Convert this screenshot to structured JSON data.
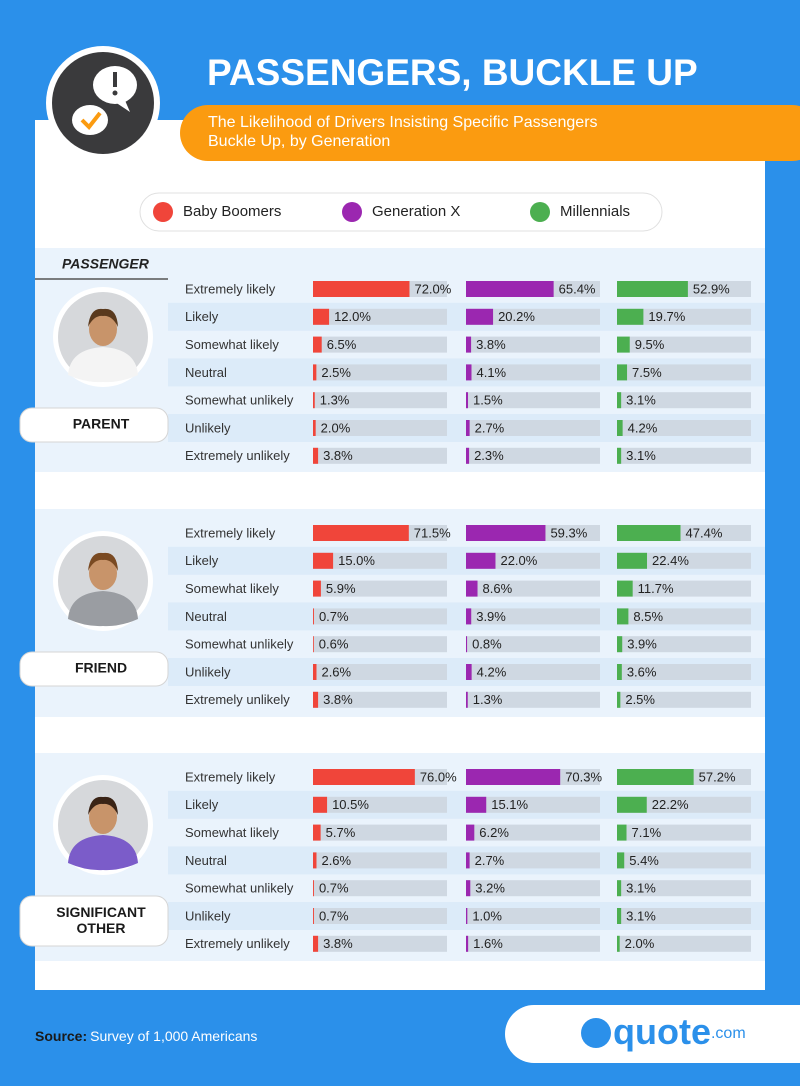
{
  "header": {
    "title": "PASSENGERS, BUCKLE UP",
    "subtitle": [
      "The Likelihood of Drivers Insisting Specific Passengers",
      "Buckle Up, by Generation"
    ]
  },
  "column_label": "PASSENGER",
  "source": {
    "label": "Source:",
    "text": "Survey of 1,000 Americans"
  },
  "logo": {
    "name": "quote",
    "suffix": ".com"
  },
  "chart_data": [
    {
      "type": "bar",
      "title": "PARENT",
      "xlim": [
        0,
        100
      ],
      "categories": [
        "Extremely likely",
        "Likely",
        "Somewhat likely",
        "Neutral",
        "Somewhat unlikely",
        "Unlikely",
        "Extremely unlikely"
      ],
      "series": [
        {
          "name": "Baby Boomers",
          "color": "#f0453a",
          "values": [
            72.0,
            12.0,
            6.5,
            2.5,
            1.3,
            2.0,
            3.8
          ],
          "value_labels": [
            "72.0%",
            "12.0%",
            "6.5%",
            "2.5%",
            "1.3%",
            "2.0%",
            "3.8%"
          ]
        },
        {
          "name": "Generation X",
          "color": "#9b27b0",
          "values": [
            65.4,
            20.2,
            3.8,
            4.1,
            1.5,
            2.7,
            2.3
          ],
          "value_labels": [
            "65.4%",
            "20.2%",
            "3.8%",
            "4.1%",
            "1.5%",
            "2.7%",
            "2.3%"
          ]
        },
        {
          "name": "Millennials",
          "color": "#4caf50",
          "values": [
            52.9,
            19.7,
            9.5,
            7.5,
            3.1,
            4.2,
            3.1
          ],
          "value_labels": [
            "52.9%",
            "19.7%",
            "9.5%",
            "7.5%",
            "3.1%",
            "4.2%",
            "3.1%"
          ]
        }
      ]
    },
    {
      "type": "bar",
      "title": "FRIEND",
      "xlim": [
        0,
        100
      ],
      "categories": [
        "Extremely likely",
        "Likely",
        "Somewhat likely",
        "Neutral",
        "Somewhat unlikely",
        "Unlikely",
        "Extremely unlikely"
      ],
      "series": [
        {
          "name": "Baby Boomers",
          "color": "#f0453a",
          "values": [
            71.5,
            15.0,
            5.9,
            0.7,
            0.6,
            2.6,
            3.8
          ],
          "value_labels": [
            "71.5%",
            "15.0%",
            "5.9%",
            "0.7%",
            "0.6%",
            "2.6%",
            "3.8%"
          ]
        },
        {
          "name": "Generation X",
          "color": "#9b27b0",
          "values": [
            59.3,
            22.0,
            8.6,
            3.9,
            0.8,
            4.2,
            1.3
          ],
          "value_labels": [
            "59.3%",
            "22.0%",
            "8.6%",
            "3.9%",
            "0.8%",
            "4.2%",
            "1.3%"
          ]
        },
        {
          "name": "Millennials",
          "color": "#4caf50",
          "values": [
            47.4,
            22.4,
            11.7,
            8.5,
            3.9,
            3.6,
            2.5
          ],
          "value_labels": [
            "47.4%",
            "22.4%",
            "11.7%",
            "8.5%",
            "3.9%",
            "3.6%",
            "2.5%"
          ]
        }
      ]
    },
    {
      "type": "bar",
      "title": "SIGNIFICANT OTHER",
      "xlim": [
        0,
        100
      ],
      "categories": [
        "Extremely likely",
        "Likely",
        "Somewhat likely",
        "Neutral",
        "Somewhat unlikely",
        "Unlikely",
        "Extremely unlikely"
      ],
      "series": [
        {
          "name": "Baby Boomers",
          "color": "#f0453a",
          "values": [
            76.0,
            10.5,
            5.7,
            2.6,
            0.7,
            0.7,
            3.8
          ],
          "value_labels": [
            "76.0%",
            "10.5%",
            "5.7%",
            "2.6%",
            "0.7%",
            "0.7%",
            "3.8%"
          ]
        },
        {
          "name": "Generation X",
          "color": "#9b27b0",
          "values": [
            70.3,
            15.1,
            6.2,
            2.7,
            3.2,
            1.0,
            1.6
          ],
          "value_labels": [
            "70.3%",
            "15.1%",
            "6.2%",
            "2.7%",
            "3.2%",
            "1.0%",
            "1.6%"
          ]
        },
        {
          "name": "Millennials",
          "color": "#4caf50",
          "values": [
            57.2,
            22.2,
            7.1,
            5.4,
            3.1,
            3.1,
            2.0
          ],
          "value_labels": [
            "57.2%",
            "22.2%",
            "7.1%",
            "5.4%",
            "3.1%",
            "3.1%",
            "2.0%"
          ]
        }
      ]
    }
  ]
}
